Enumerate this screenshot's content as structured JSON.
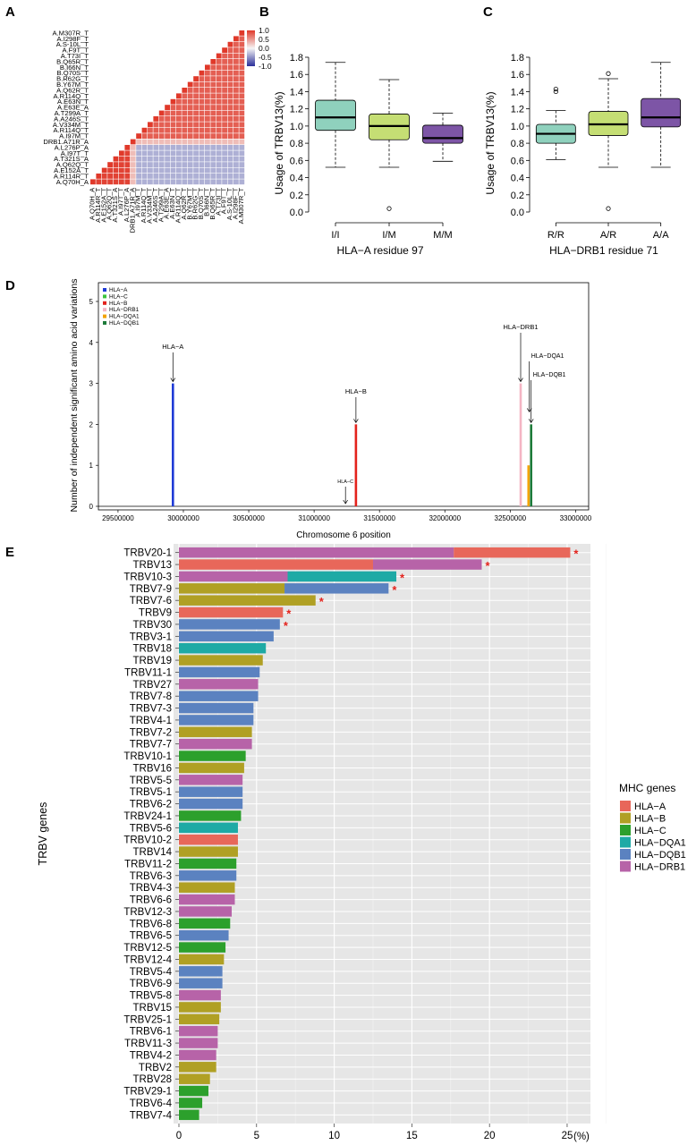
{
  "panel_letters": [
    "A",
    "B",
    "C",
    "D",
    "E"
  ],
  "colors": {
    "hla_a": "#e8675a",
    "hla_b": "#b0a024",
    "hla_c": "#2ca02c",
    "hla_dqa1": "#1eaaa5",
    "hla_dqb1": "#5b82c0",
    "hla_drb1": "#b763a8",
    "box_fill_1": "#8fd1bd",
    "box_fill_2": "#c5de74",
    "box_fill_3": "#7d55a6",
    "heat_high": "#e0392a",
    "heat_low": "#2b2f9a",
    "grid_bg": "#e6e6e6"
  },
  "chart_data": [
    {
      "panel": "A",
      "type": "heatmap",
      "title": "",
      "row_labels": [
        "A.M307R_T",
        "A.I298F_T",
        "A.S-10L_T",
        "A.F9T_T",
        "A.T73I_T",
        "B.Q65R_T",
        "B.I66N_T",
        "B.Q70S_T",
        "B.R62G_T",
        "B.Y67M_T",
        "A.Q62R_T",
        "A.R114Q_T",
        "A.E63N_T",
        "A.E63E_A",
        "A.T299A_T",
        "A.A246S_T",
        "A.V334M_T",
        "A.R114Q_T",
        "A.I97M_T",
        "DRB1.A71R_A",
        "A.L276P_A",
        "A.I97T_T",
        "A.T321S_A",
        "A.Q62Q_T",
        "A.E152A_T",
        "A.R114R_T",
        "A.Q70H_A"
      ],
      "col_labels": [
        "A.Q70H_A",
        "A.R114R_T",
        "A.E152A_T",
        "A.Q62Q_T",
        "A.T321S_A",
        "A.I97T_T",
        "A.L276P_A",
        "DRB1.A71R_A",
        "A.I97M_T",
        "A.R114Q_T",
        "A.V334M_T",
        "A.A246S_T",
        "A.T299A_T",
        "A.E63E_A",
        "A.E63N_T",
        "A.R114Q_T",
        "A.Q62R_T",
        "B.Y67M_T",
        "B.R62G_T",
        "B.Q70S_T",
        "B.I66N_T",
        "B.Q65R_T",
        "A.T73I_T",
        "A.F9T_T",
        "A.S-10L_T",
        "A.I298F_T",
        "A.M307R_T"
      ],
      "legend_ticks": [
        "1.0",
        "0.5",
        "0.0",
        "-0.5",
        "-1.0"
      ],
      "legend_values": [
        1.0,
        0.5,
        0.0,
        -0.5,
        -1.0
      ],
      "blocks": {
        "group1_size": 7,
        "separator_index": 7,
        "group2_size": 19,
        "within_group1": 0.95,
        "within_group2": 0.8,
        "between_groups": -0.35,
        "separator_corr": 0.3
      }
    },
    {
      "panel": "B",
      "type": "box",
      "xlabel": "HLA−A residue 97",
      "ylabel": "Usage of TRBV13(%)",
      "ylim": [
        0.0,
        1.8
      ],
      "yticks": [
        0.0,
        0.2,
        0.4,
        0.6,
        0.8,
        1.0,
        1.2,
        1.4,
        1.6,
        1.8
      ],
      "ytick_labels": [
        "0.0",
        "0.2",
        "0.4",
        "0.6",
        "0.8",
        "1.0",
        "1.2",
        "1.4",
        "1.6",
        "1.8"
      ],
      "categories": [
        "I/I",
        "I/M",
        "M/M"
      ],
      "boxes": [
        {
          "min": 0.52,
          "q1": 0.95,
          "median": 1.1,
          "q3": 1.3,
          "max": 1.74,
          "outliers": []
        },
        {
          "min": 0.52,
          "q1": 0.84,
          "median": 1.0,
          "q3": 1.14,
          "max": 1.54,
          "outliers": [
            0.04
          ]
        },
        {
          "min": 0.59,
          "q1": 0.8,
          "median": 0.86,
          "q3": 1.01,
          "max": 1.15,
          "outliers": []
        }
      ]
    },
    {
      "panel": "C",
      "type": "box",
      "xlabel": "HLA−DRB1 residue 71",
      "ylabel": "Usage of TRBV13(%)",
      "ylim": [
        0.0,
        1.8
      ],
      "yticks": [
        0.0,
        0.2,
        0.4,
        0.6,
        0.8,
        1.0,
        1.2,
        1.4,
        1.6,
        1.8
      ],
      "ytick_labels": [
        "0.0",
        "0.2",
        "0.4",
        "0.6",
        "0.8",
        "1.0",
        "1.2",
        "1.4",
        "1.6",
        "1.8"
      ],
      "categories": [
        "R/R",
        "A/R",
        "A/A"
      ],
      "boxes": [
        {
          "min": 0.61,
          "q1": 0.8,
          "median": 0.91,
          "q3": 1.02,
          "max": 1.18,
          "outliers": [
            1.4,
            1.43
          ]
        },
        {
          "min": 0.52,
          "q1": 0.89,
          "median": 1.02,
          "q3": 1.17,
          "max": 1.55,
          "outliers": [
            1.61,
            0.04
          ]
        },
        {
          "min": 0.52,
          "q1": 0.99,
          "median": 1.1,
          "q3": 1.32,
          "max": 1.74,
          "outliers": []
        }
      ]
    },
    {
      "panel": "D",
      "type": "bar",
      "xlabel": "Chromosome 6 position",
      "ylabel": "Number of independent significant amino acid variations",
      "xlim": [
        29350000,
        33100000
      ],
      "xticks": [
        29500000,
        30000000,
        30500000,
        31000000,
        31500000,
        32000000,
        32500000,
        33000000
      ],
      "xtick_labels": [
        "29500000",
        "30000000",
        "30500000",
        "31000000",
        "31500000",
        "32000000",
        "32500000",
        "33000000"
      ],
      "ylim": [
        0,
        5.3
      ],
      "yticks": [
        0,
        1,
        2,
        3,
        4,
        5
      ],
      "ytick_labels": [
        "0",
        "1",
        "2",
        "3",
        "4",
        "5"
      ],
      "legend": [
        "HLA−A",
        "HLA−C",
        "HLA−B",
        "HLA−DRB1",
        "HLA−DQA1",
        "HLA−DQB1"
      ],
      "legend_colors": [
        "#1f3bd6",
        "#3cc43c",
        "#e3221c",
        "#f4b5c4",
        "#f2a300",
        "#1e7b3a"
      ],
      "genes": [
        {
          "name": "HLA−A",
          "position": 29920000,
          "value": 3,
          "color": "#1f3bd6",
          "label": "HLA−A"
        },
        {
          "name": "HLA−C",
          "position": 31240000,
          "value": 0,
          "color": "#3cc43c",
          "label": "HLA−C"
        },
        {
          "name": "HLA−B",
          "position": 31320000,
          "value": 2,
          "color": "#e3221c",
          "label": "HLA−B"
        },
        {
          "name": "HLA−DRB1",
          "position": 32580000,
          "value": 3,
          "color": "#f4b5c4",
          "label": "HLA−DRB1"
        },
        {
          "name": "HLA−DQA1",
          "position": 32640000,
          "value": 1,
          "color": "#f2a300",
          "label": "HLA−DQA1"
        },
        {
          "name": "HLA−DQB1",
          "position": 32660000,
          "value": 2,
          "color": "#1e7b3a",
          "label": "HLA−DQB1"
        }
      ]
    },
    {
      "panel": "E",
      "type": "bar",
      "orientation": "horizontal",
      "stacked": true,
      "xlabel": "(%)",
      "ylabel": "TRBV genes",
      "xlim": [
        0,
        26.5
      ],
      "xticks": [
        0,
        5,
        10,
        15,
        20,
        25
      ],
      "xtick_labels": [
        "0",
        "5",
        "10",
        "15",
        "20",
        "25"
      ],
      "legend_title": "MHC genes",
      "legend": [
        "HLA−A",
        "HLA−B",
        "HLA−C",
        "HLA−DQA1",
        "HLA−DQB1",
        "HLA−DRB1"
      ],
      "legend_keys": [
        "hla_a",
        "hla_b",
        "hla_c",
        "hla_dqa1",
        "hla_dqb1",
        "hla_drb1"
      ],
      "star": "*",
      "bars": [
        {
          "gene": "TRBV20-1",
          "segments": [
            {
              "g": "hla_drb1",
              "v": 17.7
            },
            {
              "g": "hla_a",
              "v": 7.5
            }
          ],
          "star": true
        },
        {
          "gene": "TRBV13",
          "segments": [
            {
              "g": "hla_a",
              "v": 12.5
            },
            {
              "g": "hla_drb1",
              "v": 7.0
            }
          ],
          "star": true
        },
        {
          "gene": "TRBV10-3",
          "segments": [
            {
              "g": "hla_drb1",
              "v": 7.0
            },
            {
              "g": "hla_dqa1",
              "v": 7.0
            }
          ],
          "star": true
        },
        {
          "gene": "TRBV7-9",
          "segments": [
            {
              "g": "hla_b",
              "v": 6.8
            },
            {
              "g": "hla_dqb1",
              "v": 6.7
            }
          ],
          "star": true
        },
        {
          "gene": "TRBV7-6",
          "segments": [
            {
              "g": "hla_b",
              "v": 8.8
            }
          ],
          "star": true
        },
        {
          "gene": "TRBV9",
          "segments": [
            {
              "g": "hla_a",
              "v": 6.7
            }
          ],
          "star": true
        },
        {
          "gene": "TRBV30",
          "segments": [
            {
              "g": "hla_dqb1",
              "v": 6.5
            }
          ],
          "star": true
        },
        {
          "gene": "TRBV3-1",
          "segments": [
            {
              "g": "hla_dqb1",
              "v": 6.1
            }
          ],
          "star": false
        },
        {
          "gene": "TRBV18",
          "segments": [
            {
              "g": "hla_dqa1",
              "v": 5.6
            }
          ],
          "star": false
        },
        {
          "gene": "TRBV19",
          "segments": [
            {
              "g": "hla_b",
              "v": 5.4
            }
          ],
          "star": false
        },
        {
          "gene": "TRBV11-1",
          "segments": [
            {
              "g": "hla_dqb1",
              "v": 5.2
            }
          ],
          "star": false
        },
        {
          "gene": "TRBV27",
          "segments": [
            {
              "g": "hla_drb1",
              "v": 5.1
            }
          ],
          "star": false
        },
        {
          "gene": "TRBV7-8",
          "segments": [
            {
              "g": "hla_dqb1",
              "v": 5.1
            }
          ],
          "star": false
        },
        {
          "gene": "TRBV7-3",
          "segments": [
            {
              "g": "hla_dqb1",
              "v": 4.8
            }
          ],
          "star": false
        },
        {
          "gene": "TRBV4-1",
          "segments": [
            {
              "g": "hla_dqb1",
              "v": 4.8
            }
          ],
          "star": false
        },
        {
          "gene": "TRBV7-2",
          "segments": [
            {
              "g": "hla_b",
              "v": 4.7
            }
          ],
          "star": false
        },
        {
          "gene": "TRBV7-7",
          "segments": [
            {
              "g": "hla_drb1",
              "v": 4.7
            }
          ],
          "star": false
        },
        {
          "gene": "TRBV10-1",
          "segments": [
            {
              "g": "hla_c",
              "v": 4.3
            }
          ],
          "star": false
        },
        {
          "gene": "TRBV16",
          "segments": [
            {
              "g": "hla_b",
              "v": 4.2
            }
          ],
          "star": false
        },
        {
          "gene": "TRBV5-5",
          "segments": [
            {
              "g": "hla_drb1",
              "v": 4.1
            }
          ],
          "star": false
        },
        {
          "gene": "TRBV5-1",
          "segments": [
            {
              "g": "hla_dqb1",
              "v": 4.1
            }
          ],
          "star": false
        },
        {
          "gene": "TRBV6-2",
          "segments": [
            {
              "g": "hla_dqb1",
              "v": 4.1
            }
          ],
          "star": false
        },
        {
          "gene": "TRBV24-1",
          "segments": [
            {
              "g": "hla_c",
              "v": 4.0
            }
          ],
          "star": false
        },
        {
          "gene": "TRBV5-6",
          "segments": [
            {
              "g": "hla_dqa1",
              "v": 3.8
            }
          ],
          "star": false
        },
        {
          "gene": "TRBV10-2",
          "segments": [
            {
              "g": "hla_a",
              "v": 3.8
            }
          ],
          "star": false
        },
        {
          "gene": "TRBV14",
          "segments": [
            {
              "g": "hla_b",
              "v": 3.8
            }
          ],
          "star": false
        },
        {
          "gene": "TRBV11-2",
          "segments": [
            {
              "g": "hla_c",
              "v": 3.7
            }
          ],
          "star": false
        },
        {
          "gene": "TRBV6-3",
          "segments": [
            {
              "g": "hla_dqb1",
              "v": 3.7
            }
          ],
          "star": false
        },
        {
          "gene": "TRBV4-3",
          "segments": [
            {
              "g": "hla_b",
              "v": 3.6
            }
          ],
          "star": false
        },
        {
          "gene": "TRBV6-6",
          "segments": [
            {
              "g": "hla_drb1",
              "v": 3.6
            }
          ],
          "star": false
        },
        {
          "gene": "TRBV12-3",
          "segments": [
            {
              "g": "hla_drb1",
              "v": 3.4
            }
          ],
          "star": false
        },
        {
          "gene": "TRBV6-8",
          "segments": [
            {
              "g": "hla_c",
              "v": 3.3
            }
          ],
          "star": false
        },
        {
          "gene": "TRBV6-5",
          "segments": [
            {
              "g": "hla_dqb1",
              "v": 3.2
            }
          ],
          "star": false
        },
        {
          "gene": "TRBV12-5",
          "segments": [
            {
              "g": "hla_c",
              "v": 3.0
            }
          ],
          "star": false
        },
        {
          "gene": "TRBV12-4",
          "segments": [
            {
              "g": "hla_b",
              "v": 2.9
            }
          ],
          "star": false
        },
        {
          "gene": "TRBV5-4",
          "segments": [
            {
              "g": "hla_dqb1",
              "v": 2.8
            }
          ],
          "star": false
        },
        {
          "gene": "TRBV6-9",
          "segments": [
            {
              "g": "hla_dqb1",
              "v": 2.8
            }
          ],
          "star": false
        },
        {
          "gene": "TRBV5-8",
          "segments": [
            {
              "g": "hla_drb1",
              "v": 2.7
            }
          ],
          "star": false
        },
        {
          "gene": "TRBV15",
          "segments": [
            {
              "g": "hla_b",
              "v": 2.7
            }
          ],
          "star": false
        },
        {
          "gene": "TRBV25-1",
          "segments": [
            {
              "g": "hla_b",
              "v": 2.6
            }
          ],
          "star": false
        },
        {
          "gene": "TRBV6-1",
          "segments": [
            {
              "g": "hla_drb1",
              "v": 2.5
            }
          ],
          "star": false
        },
        {
          "gene": "TRBV11-3",
          "segments": [
            {
              "g": "hla_drb1",
              "v": 2.5
            }
          ],
          "star": false
        },
        {
          "gene": "TRBV4-2",
          "segments": [
            {
              "g": "hla_drb1",
              "v": 2.4
            }
          ],
          "star": false
        },
        {
          "gene": "TRBV2",
          "segments": [
            {
              "g": "hla_b",
              "v": 2.4
            }
          ],
          "star": false
        },
        {
          "gene": "TRBV28",
          "segments": [
            {
              "g": "hla_b",
              "v": 2.0
            }
          ],
          "star": false
        },
        {
          "gene": "TRBV29-1",
          "segments": [
            {
              "g": "hla_c",
              "v": 1.9
            }
          ],
          "star": false
        },
        {
          "gene": "TRBV6-4",
          "segments": [
            {
              "g": "hla_c",
              "v": 1.5
            }
          ],
          "star": false
        },
        {
          "gene": "TRBV7-4",
          "segments": [
            {
              "g": "hla_c",
              "v": 1.3
            }
          ],
          "star": false
        }
      ]
    }
  ]
}
